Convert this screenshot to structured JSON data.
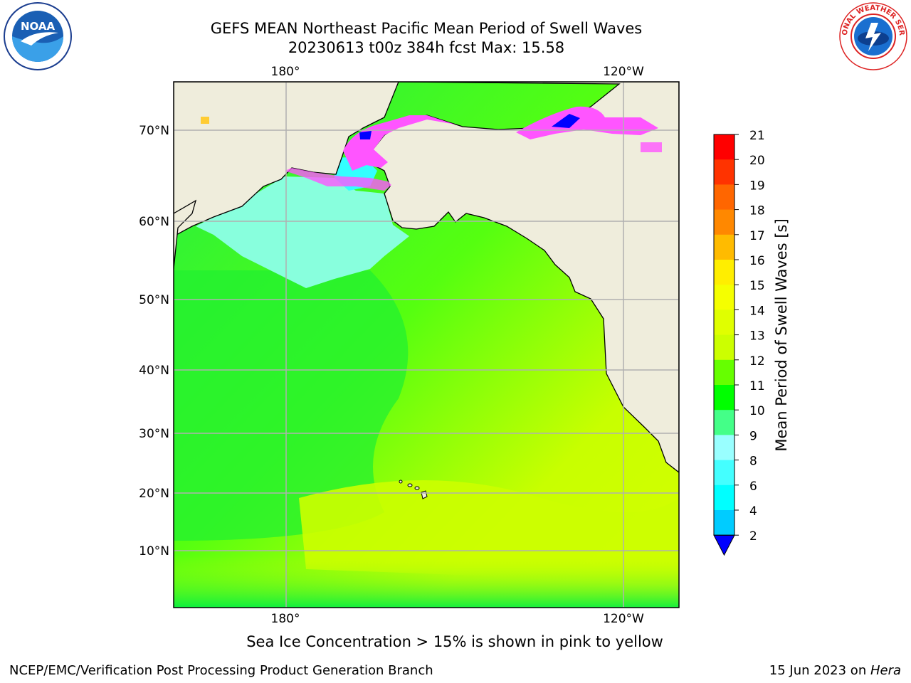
{
  "header": {
    "title_line1": "GEFS MEAN Northeast Pacific Mean Period of Swell Waves",
    "title_line2": "20230613 t00z 384h fcst   Max: 15.58"
  },
  "map": {
    "lon_labels": [
      "180°",
      "120°W"
    ],
    "lat_labels": [
      "70°N",
      "60°N",
      "50°N",
      "40°N",
      "30°N",
      "20°N",
      "10°N"
    ],
    "colors": {
      "land": "#efeddc",
      "coast": "#000000",
      "grid": "#b0b0b0",
      "ice_pink": "#ff55ff",
      "ice_blue": "#0000ff"
    }
  },
  "colorbar": {
    "label": "Mean Period of Swell Waves [s]",
    "ticks": [
      "21",
      "20",
      "19",
      "18",
      "17",
      "16",
      "15",
      "14",
      "13",
      "12",
      "11",
      "10",
      "9",
      "8",
      "6",
      "4",
      "2"
    ],
    "colors": [
      "#ff0000",
      "#ff3300",
      "#ff6600",
      "#ff8800",
      "#ffbb00",
      "#ffee00",
      "#f5ff00",
      "#e0ff00",
      "#ccff00",
      "#66ff00",
      "#00ff00",
      "#44ff88",
      "#99ffff",
      "#44ffff",
      "#00ffff",
      "#00ccff",
      "#0077ff"
    ],
    "extend_color": "#0000ff"
  },
  "footer": {
    "note": "Sea Ice Concentration > 15% is shown in pink to yellow",
    "left": "NCEP/EMC/Verification Post Processing Product Generation Branch",
    "date": "15 Jun 2023 on ",
    "host": "Hera"
  },
  "logos": {
    "noaa_text": "NOAA",
    "nws_text": "NATIONAL WEATHER SERVICE"
  }
}
